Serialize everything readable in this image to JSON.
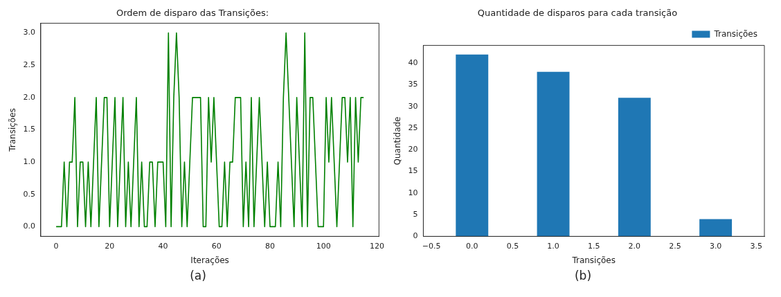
{
  "chart_data": [
    {
      "type": "line",
      "title": "Ordem de disparo das Transições:",
      "xlabel": "Iterações",
      "ylabel": "Transições",
      "grid": false,
      "legend": false,
      "x": [
        0,
        1,
        2,
        3,
        4,
        5,
        6,
        7,
        8,
        9,
        10,
        11,
        12,
        13,
        14,
        15,
        16,
        17,
        18,
        19,
        20,
        21,
        22,
        23,
        24,
        25,
        26,
        27,
        28,
        29,
        30,
        31,
        32,
        33,
        34,
        35,
        36,
        37,
        38,
        39,
        40,
        41,
        42,
        43,
        44,
        45,
        46,
        47,
        48,
        49,
        50,
        51,
        52,
        53,
        54,
        55,
        56,
        57,
        58,
        59,
        60,
        61,
        62,
        63,
        64,
        65,
        66,
        67,
        68,
        69,
        70,
        71,
        72,
        73,
        74,
        75,
        76,
        77,
        78,
        79,
        80,
        81,
        82,
        83,
        84,
        85,
        86,
        87,
        88,
        89,
        90,
        91,
        92,
        93,
        94,
        95,
        96,
        97,
        98,
        99,
        100,
        101,
        102,
        103,
        104,
        105,
        106,
        107,
        108,
        109,
        110,
        111,
        112,
        113,
        114,
        115
      ],
      "series": [
        {
          "color": "#008000",
          "values": [
            0,
            0,
            0,
            1,
            0,
            1,
            1,
            2,
            0,
            1,
            1,
            0,
            1,
            0,
            1,
            2,
            0,
            1,
            2,
            2,
            0,
            1,
            2,
            0,
            1,
            2,
            0,
            1,
            0,
            1,
            2,
            0,
            1,
            0,
            0,
            1,
            1,
            0,
            1,
            1,
            1,
            0,
            3,
            0,
            2,
            3,
            2,
            0,
            1,
            0,
            1,
            2,
            2,
            2,
            2,
            0,
            0,
            2,
            1,
            2,
            1,
            0,
            0,
            1,
            0,
            1,
            1,
            2,
            2,
            2,
            0,
            1,
            0,
            2,
            0,
            1,
            2,
            1,
            0,
            1,
            0,
            0,
            0,
            1,
            0,
            2,
            3,
            2,
            1,
            0,
            2,
            1,
            0,
            3,
            0,
            2,
            2,
            1,
            0,
            0,
            0,
            2,
            1,
            2,
            1,
            0,
            1,
            2,
            2,
            1,
            2,
            0,
            2,
            1,
            2,
            2
          ]
        }
      ],
      "xlim": [
        -5.75,
        120.75
      ],
      "xticks": [
        0,
        20,
        40,
        60,
        80,
        100,
        120
      ],
      "ylim": [
        -0.15,
        3.15
      ],
      "yticks": [
        {
          "value": 0,
          "label": "0.0"
        },
        {
          "value": 0.5,
          "label": "0.5"
        },
        {
          "value": 1,
          "label": "1.0"
        },
        {
          "value": 1.5,
          "label": "1.5"
        },
        {
          "value": 2,
          "label": "2.0"
        },
        {
          "value": 2.5,
          "label": "2.5"
        },
        {
          "value": 3,
          "label": "3.0"
        }
      ],
      "annotations": [
        "(a)"
      ]
    },
    {
      "type": "bar",
      "title": "Quantidade de disparos para cada transição",
      "xlabel": "Transições",
      "ylabel": "Quantidade",
      "grid": false,
      "legend": "top right",
      "x": [
        0,
        1,
        2,
        3
      ],
      "series": [
        {
          "name": "Transições",
          "color": "#1f77b4",
          "values": [
            42,
            38,
            32,
            4
          ]
        }
      ],
      "xlim": [
        -0.6,
        3.6
      ],
      "xticks": [
        {
          "value": -0.5,
          "label": "−0.5"
        },
        {
          "value": 0,
          "label": "0.0"
        },
        {
          "value": 0.5,
          "label": "0.5"
        },
        {
          "value": 1,
          "label": "1.0"
        },
        {
          "value": 1.5,
          "label": "1.5"
        },
        {
          "value": 2,
          "label": "2.0"
        },
        {
          "value": 2.5,
          "label": "2.5"
        },
        {
          "value": 3,
          "label": "3.0"
        },
        {
          "value": 3.5,
          "label": "3.5"
        }
      ],
      "ylim": [
        0,
        44.1
      ],
      "yticks": [
        0,
        5,
        10,
        15,
        20,
        25,
        30,
        35,
        40
      ],
      "annotations": [
        "(b)"
      ]
    }
  ]
}
